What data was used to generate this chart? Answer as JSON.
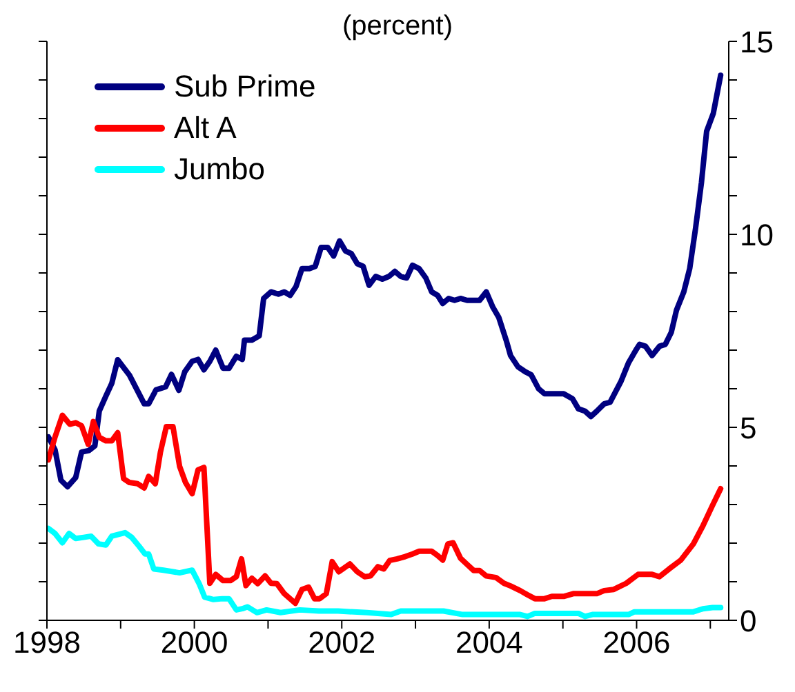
{
  "chart_data": {
    "type": "line",
    "title": "(percent)",
    "xlim": [
      1998,
      2007.25
    ],
    "xticks": [
      1998,
      {
        "value": 1999,
        "label": null
      },
      2000,
      {
        "value": 2001,
        "label": null
      },
      2002,
      {
        "value": 2003,
        "label": null
      },
      2004,
      {
        "value": 2005,
        "label": null
      },
      2006,
      {
        "value": 2007,
        "label": null
      }
    ],
    "ylim": [
      0,
      15
    ],
    "yticks": [
      0,
      {
        "value": 1,
        "label": null
      },
      {
        "value": 2,
        "label": null
      },
      {
        "value": 3,
        "label": null
      },
      {
        "value": 4,
        "label": null
      },
      5,
      {
        "value": 6,
        "label": null
      },
      {
        "value": 7,
        "label": null
      },
      {
        "value": 8,
        "label": null
      },
      {
        "value": 9,
        "label": null
      },
      10,
      {
        "value": 11,
        "label": null
      },
      {
        "value": 12,
        "label": null
      },
      {
        "value": 13,
        "label": null
      },
      {
        "value": 14,
        "label": null
      },
      15
    ],
    "legend": "top left",
    "marker": "none",
    "line_style": "solid",
    "series": [
      {
        "name": "Sub Prime",
        "color": "#000080",
        "x": [
          1998.02,
          1998.11,
          1998.19,
          1998.28,
          1998.39,
          1998.47,
          1998.57,
          1998.65,
          1998.71,
          1998.8,
          1998.88,
          1998.96,
          1999.12,
          1999.32,
          1999.38,
          1999.48,
          1999.61,
          1999.69,
          1999.79,
          1999.87,
          1999.97,
          2000.05,
          2000.13,
          2000.21,
          2000.29,
          2000.39,
          2000.47,
          2000.57,
          2000.65,
          2000.68,
          2000.78,
          2000.88,
          2000.94,
          2001.04,
          2001.14,
          2001.22,
          2001.3,
          2001.38,
          2001.46,
          2001.56,
          2001.64,
          2001.72,
          2001.81,
          2001.89,
          2001.97,
          2002.05,
          2002.13,
          2002.21,
          2002.29,
          2002.37,
          2002.46,
          2002.55,
          2002.64,
          2002.72,
          2002.8,
          2002.88,
          2002.96,
          2003.05,
          2003.14,
          2003.22,
          2003.3,
          2003.37,
          2003.45,
          2003.53,
          2003.61,
          2003.7,
          2003.87,
          2003.96,
          2004.05,
          2004.13,
          2004.23,
          2004.29,
          2004.39,
          2004.49,
          2004.57,
          2004.67,
          2004.75,
          2005.01,
          2005.13,
          2005.21,
          2005.3,
          2005.38,
          2005.46,
          2005.56,
          2005.64,
          2005.79,
          2005.89,
          2005.99,
          2006.04,
          2006.12,
          2006.21,
          2006.31,
          2006.39,
          2006.47,
          2006.54,
          2006.64,
          2006.72,
          2006.8,
          2006.88,
          2006.95,
          2007.04,
          2007.14
        ],
        "values": [
          4.75,
          4.42,
          3.63,
          3.46,
          3.7,
          4.36,
          4.4,
          4.52,
          5.42,
          5.81,
          6.14,
          6.75,
          6.35,
          5.61,
          5.61,
          5.97,
          6.05,
          6.37,
          5.96,
          6.44,
          6.71,
          6.76,
          6.49,
          6.71,
          7.0,
          6.53,
          6.53,
          6.84,
          6.76,
          7.26,
          7.26,
          7.37,
          8.34,
          8.51,
          8.45,
          8.51,
          8.42,
          8.65,
          9.11,
          9.11,
          9.17,
          9.66,
          9.66,
          9.44,
          9.83,
          9.57,
          9.5,
          9.24,
          9.17,
          8.68,
          8.91,
          8.84,
          8.91,
          9.04,
          8.91,
          8.87,
          9.2,
          9.11,
          8.87,
          8.51,
          8.42,
          8.21,
          8.34,
          8.29,
          8.34,
          8.29,
          8.29,
          8.51,
          8.11,
          7.85,
          7.26,
          6.86,
          6.57,
          6.44,
          6.36,
          6.0,
          5.87,
          5.87,
          5.74,
          5.48,
          5.42,
          5.28,
          5.42,
          5.61,
          5.65,
          6.2,
          6.67,
          7.0,
          7.15,
          7.1,
          6.86,
          7.1,
          7.15,
          7.46,
          8.03,
          8.51,
          9.11,
          10.16,
          11.35,
          12.67,
          13.13,
          14.12
        ]
      },
      {
        "name": "Alt A",
        "color": "#ff0000",
        "x": [
          1998.02,
          1998.11,
          1998.21,
          1998.31,
          1998.39,
          1998.47,
          1998.56,
          1998.63,
          1998.71,
          1998.8,
          1998.88,
          1998.96,
          1999.04,
          1999.12,
          1999.23,
          1999.32,
          1999.38,
          1999.47,
          1999.54,
          1999.62,
          1999.71,
          1999.8,
          1999.88,
          1999.97,
          2000.05,
          2000.13,
          2000.21,
          2000.29,
          2000.39,
          2000.49,
          2000.57,
          2000.64,
          2000.7,
          2000.78,
          2000.86,
          2000.96,
          2001.04,
          2001.12,
          2001.22,
          2001.37,
          2001.46,
          2001.55,
          2001.63,
          2001.7,
          2001.79,
          2001.87,
          2001.96,
          2002.11,
          2002.21,
          2002.31,
          2002.39,
          2002.49,
          2002.57,
          2002.65,
          2002.75,
          2002.86,
          2002.96,
          2003.05,
          2003.22,
          2003.3,
          2003.37,
          2003.44,
          2003.51,
          2003.61,
          2003.71,
          2003.79,
          2003.87,
          2003.96,
          2004.09,
          2004.2,
          2004.29,
          2004.42,
          2004.52,
          2004.62,
          2004.75,
          2004.85,
          2005.01,
          2005.14,
          2005.46,
          2005.56,
          2005.69,
          2005.86,
          2006.02,
          2006.21,
          2006.31,
          2006.44,
          2006.6,
          2006.77,
          2006.9,
          2007.03,
          2007.14
        ],
        "values": [
          4.16,
          4.75,
          5.31,
          5.08,
          5.12,
          5.04,
          4.56,
          5.15,
          4.74,
          4.65,
          4.65,
          4.86,
          3.67,
          3.57,
          3.54,
          3.43,
          3.73,
          3.54,
          4.36,
          5.02,
          5.02,
          3.99,
          3.57,
          3.28,
          3.9,
          3.96,
          0.96,
          1.19,
          1.03,
          1.03,
          1.13,
          1.59,
          0.9,
          1.09,
          0.95,
          1.15,
          0.96,
          0.95,
          0.69,
          0.44,
          0.8,
          0.86,
          0.56,
          0.56,
          0.69,
          1.52,
          1.26,
          1.46,
          1.26,
          1.13,
          1.15,
          1.39,
          1.33,
          1.55,
          1.59,
          1.65,
          1.72,
          1.79,
          1.79,
          1.68,
          1.56,
          1.98,
          2.01,
          1.61,
          1.43,
          1.29,
          1.29,
          1.15,
          1.11,
          0.96,
          0.89,
          0.77,
          0.66,
          0.56,
          0.56,
          0.62,
          0.62,
          0.69,
          0.69,
          0.77,
          0.8,
          0.96,
          1.19,
          1.19,
          1.13,
          1.33,
          1.56,
          1.98,
          2.45,
          2.98,
          3.41
        ]
      },
      {
        "name": "Jumbo",
        "color": "#00ffff",
        "x": [
          1998.02,
          1998.11,
          1998.21,
          1998.3,
          1998.39,
          1998.5,
          1998.6,
          1998.7,
          1998.8,
          1998.88,
          1999.06,
          1999.15,
          1999.25,
          1999.33,
          1999.38,
          1999.45,
          1999.58,
          1999.71,
          1999.8,
          1999.97,
          2000.07,
          2000.14,
          2000.26,
          2000.38,
          2000.47,
          2000.57,
          2000.65,
          2000.72,
          2000.85,
          2000.98,
          2001.17,
          2001.43,
          2001.69,
          2001.95,
          2002.34,
          2002.67,
          2002.8,
          2003.38,
          2003.64,
          2004.42,
          2004.52,
          2004.62,
          2005.21,
          2005.3,
          2005.4,
          2005.89,
          2005.97,
          2006.77,
          2006.9,
          2007.03,
          2007.14
        ],
        "values": [
          2.38,
          2.25,
          2.01,
          2.25,
          2.12,
          2.15,
          2.18,
          1.98,
          1.95,
          2.18,
          2.27,
          2.15,
          1.92,
          1.72,
          1.72,
          1.33,
          1.3,
          1.26,
          1.23,
          1.3,
          0.93,
          0.6,
          0.54,
          0.56,
          0.56,
          0.27,
          0.3,
          0.35,
          0.2,
          0.27,
          0.2,
          0.27,
          0.24,
          0.24,
          0.2,
          0.15,
          0.24,
          0.24,
          0.15,
          0.15,
          0.1,
          0.18,
          0.18,
          0.1,
          0.15,
          0.15,
          0.22,
          0.22,
          0.3,
          0.33,
          0.33
        ]
      }
    ]
  }
}
